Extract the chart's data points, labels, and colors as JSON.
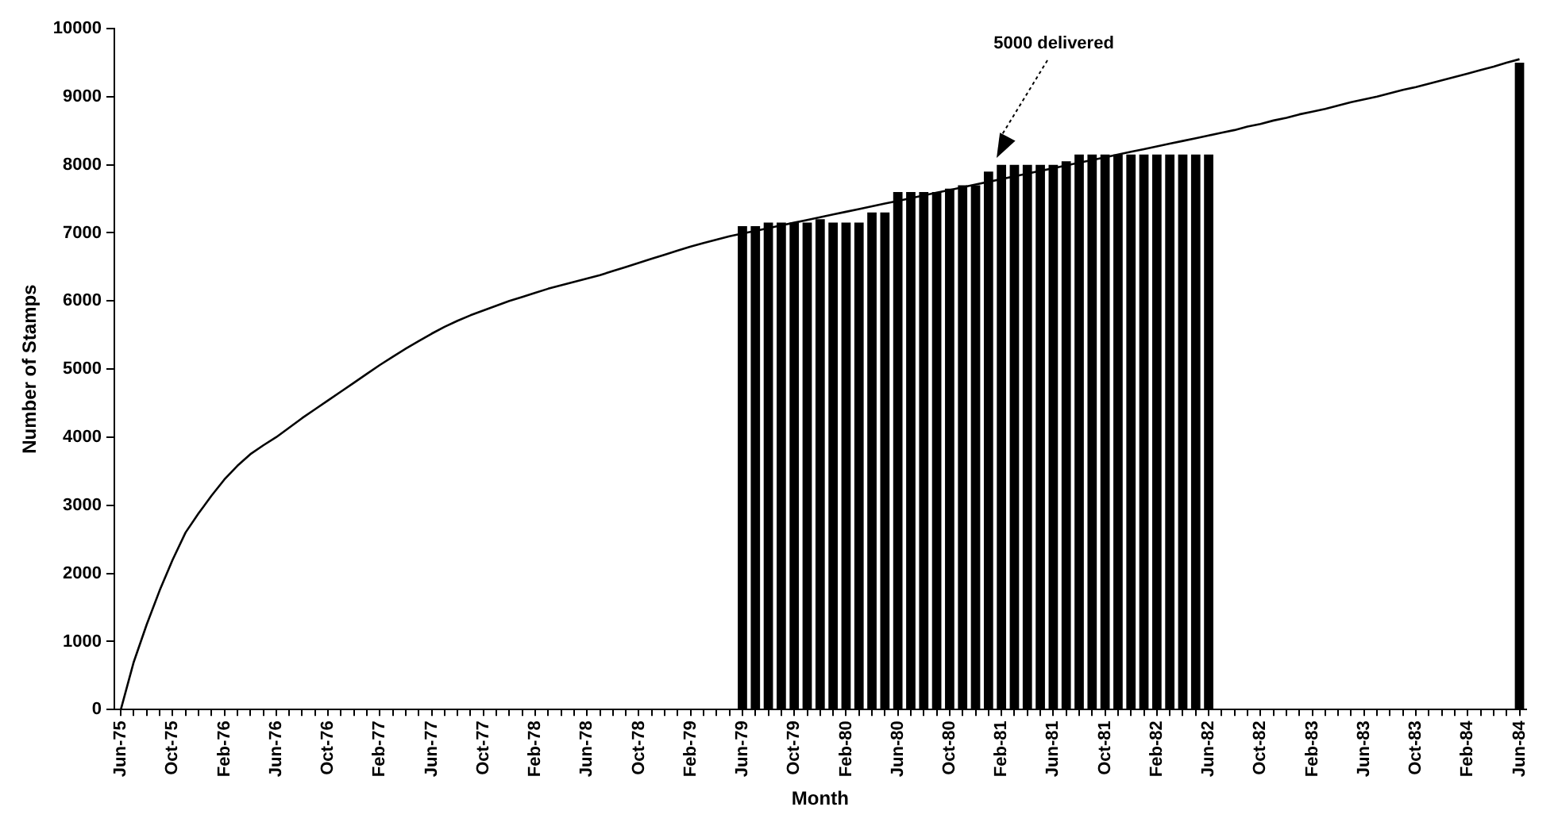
{
  "chart_data": {
    "type": "bar",
    "xlabel": "Month",
    "ylabel": "Number of Stamps",
    "categories": [
      "Jun-75",
      null,
      null,
      null,
      "Oct-75",
      null,
      null,
      null,
      "Feb-76",
      null,
      null,
      null,
      "Jun-76",
      null,
      null,
      null,
      "Oct-76",
      null,
      null,
      null,
      "Feb-77",
      null,
      null,
      null,
      "Jun-77",
      null,
      null,
      null,
      "Oct-77",
      null,
      null,
      null,
      "Feb-78",
      null,
      null,
      null,
      "Jun-78",
      null,
      null,
      null,
      "Oct-78",
      null,
      null,
      null,
      "Feb-79",
      null,
      null,
      null,
      "Jun-79",
      null,
      null,
      null,
      "Oct-79",
      null,
      null,
      null,
      "Feb-80",
      null,
      null,
      null,
      "Jun-80",
      null,
      null,
      null,
      "Oct-80",
      null,
      null,
      null,
      "Feb-81",
      null,
      null,
      null,
      "Jun-81",
      null,
      null,
      null,
      "Oct-81",
      null,
      null,
      null,
      "Feb-82",
      null,
      null,
      null,
      "Jun-82",
      null,
      null,
      null,
      "Oct-82",
      null,
      null,
      null,
      "Feb-83",
      null,
      null,
      null,
      "Jun-83",
      null,
      null,
      null,
      "Oct-83",
      null,
      null,
      null,
      "Feb-84",
      null,
      null,
      null,
      "Jun-84"
    ],
    "series": [
      {
        "color": "#000000",
        "values": [
          null,
          null,
          null,
          null,
          null,
          null,
          null,
          null,
          null,
          null,
          null,
          null,
          null,
          null,
          null,
          null,
          null,
          null,
          null,
          null,
          null,
          null,
          null,
          null,
          null,
          null,
          null,
          null,
          null,
          null,
          null,
          null,
          null,
          null,
          null,
          null,
          null,
          null,
          null,
          null,
          null,
          null,
          null,
          null,
          null,
          null,
          null,
          null,
          7100,
          7100,
          7150,
          7150,
          7150,
          7150,
          7200,
          7150,
          7150,
          7150,
          7300,
          7300,
          7600,
          7600,
          7600,
          7600,
          7650,
          7700,
          7700,
          7900,
          8000,
          8000,
          8000,
          8000,
          8000,
          8050,
          8150,
          8150,
          8150,
          8150,
          8150,
          8150,
          8150,
          8150,
          8150,
          8150,
          8150,
          null,
          null,
          null,
          null,
          null,
          null,
          null,
          null,
          null,
          null,
          null,
          null,
          null,
          null,
          null,
          null,
          null,
          null,
          null,
          null,
          null,
          null,
          null,
          9500
        ]
      },
      {
        "type": "line",
        "color": "#000000",
        "values": [
          0,
          700,
          1250,
          1750,
          2200,
          2600,
          2880,
          3140,
          3380,
          3580,
          3750,
          3880,
          4000,
          4140,
          4280,
          4410,
          4540,
          4670,
          4800,
          4930,
          5060,
          5180,
          5300,
          5410,
          5520,
          5620,
          5710,
          5790,
          5860,
          5930,
          6000,
          6060,
          6120,
          6180,
          6230,
          6280,
          6330,
          6380,
          6440,
          6500,
          6560,
          6620,
          6680,
          6740,
          6800,
          6850,
          6900,
          6950,
          6990,
          7030,
          7070,
          7110,
          7150,
          7190,
          7230,
          7270,
          7310,
          7350,
          7390,
          7430,
          7470,
          7510,
          7550,
          7590,
          7630,
          7670,
          7710,
          7750,
          7790,
          7830,
          7870,
          7910,
          7950,
          7990,
          8030,
          8070,
          8110,
          8150,
          8190,
          8230,
          8270,
          8310,
          8350,
          8390,
          8430,
          8470,
          8510,
          8560,
          8600,
          8650,
          8690,
          8740,
          8780,
          8820,
          8870,
          8920,
          8960,
          9000,
          9050,
          9100,
          9140,
          9190,
          9240,
          9290,
          9340,
          9390,
          9440,
          9500,
          9550
        ]
      }
    ],
    "ylim": [
      0,
      10000
    ],
    "yticks": [
      0,
      1000,
      2000,
      3000,
      4000,
      5000,
      6000,
      7000,
      8000,
      9000,
      10000
    ],
    "grid": false,
    "legend": false,
    "marker": "none",
    "annotations": [
      "5000 delivered"
    ]
  }
}
